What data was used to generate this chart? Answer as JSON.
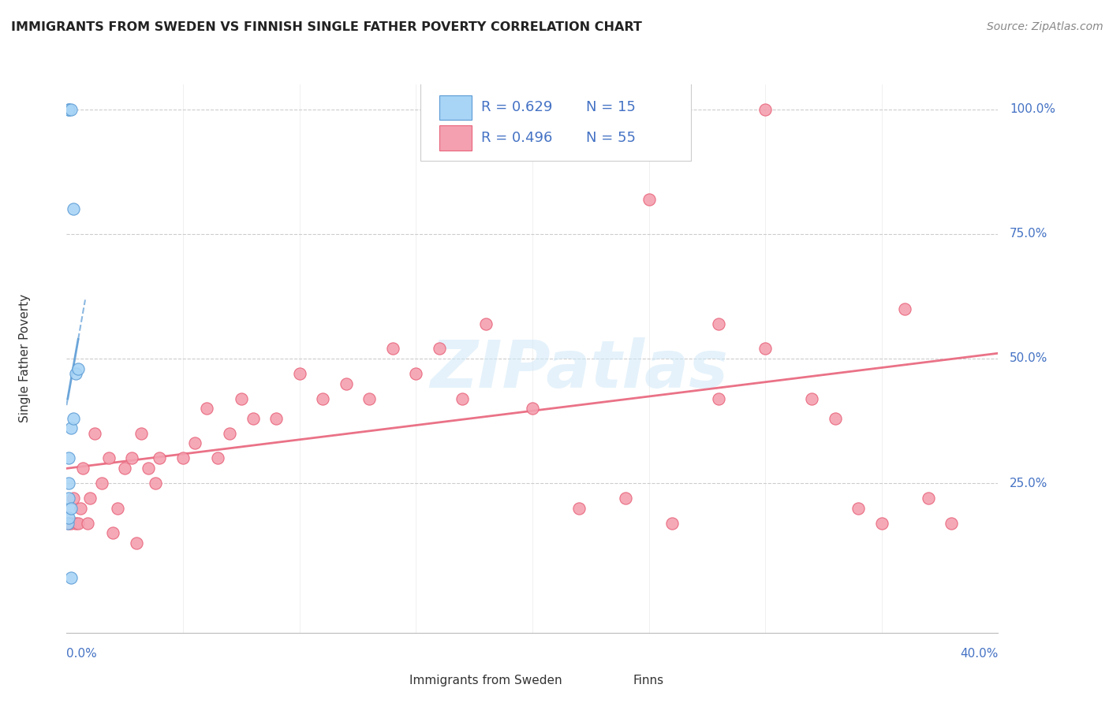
{
  "title": "IMMIGRANTS FROM SWEDEN VS FINNISH SINGLE FATHER POVERTY CORRELATION CHART",
  "source": "Source: ZipAtlas.com",
  "ylabel": "Single Father Poverty",
  "blue_color": "#5b9bd5",
  "blue_face": "#a8d4f5",
  "pink_color": "#e8637a",
  "pink_face": "#f4a0b0",
  "watermark": "ZIPatlas",
  "background_color": "#ffffff",
  "grid_color": "#cccccc",
  "blue_scatter_x": [
    0.0005,
    0.001,
    0.001,
    0.001,
    0.001,
    0.002,
    0.002,
    0.002,
    0.003,
    0.003,
    0.004,
    0.005,
    0.001,
    0.0008,
    0.002
  ],
  "blue_scatter_y": [
    0.17,
    1.0,
    1.0,
    0.22,
    0.18,
    1.0,
    0.36,
    0.2,
    0.38,
    0.8,
    0.47,
    0.48,
    0.3,
    0.25,
    0.06
  ],
  "pink_scatter_x": [
    0.001,
    0.002,
    0.003,
    0.004,
    0.005,
    0.006,
    0.007,
    0.009,
    0.01,
    0.012,
    0.015,
    0.018,
    0.02,
    0.022,
    0.025,
    0.028,
    0.03,
    0.032,
    0.035,
    0.038,
    0.04,
    0.05,
    0.055,
    0.06,
    0.065,
    0.07,
    0.075,
    0.08,
    0.09,
    0.1,
    0.11,
    0.12,
    0.13,
    0.14,
    0.15,
    0.16,
    0.17,
    0.18,
    0.2,
    0.22,
    0.24,
    0.26,
    0.28,
    0.3,
    0.32,
    0.34,
    0.36,
    0.38,
    0.37,
    0.21,
    0.3,
    0.35,
    0.25,
    0.28,
    0.33
  ],
  "pink_scatter_y": [
    0.17,
    0.17,
    0.22,
    0.17,
    0.17,
    0.2,
    0.28,
    0.17,
    0.22,
    0.35,
    0.25,
    0.3,
    0.15,
    0.2,
    0.28,
    0.3,
    0.13,
    0.35,
    0.28,
    0.25,
    0.3,
    0.3,
    0.33,
    0.4,
    0.3,
    0.35,
    0.42,
    0.38,
    0.38,
    0.47,
    0.42,
    0.45,
    0.42,
    0.52,
    0.47,
    0.52,
    0.42,
    0.57,
    0.4,
    0.2,
    0.22,
    0.17,
    0.57,
    0.52,
    0.42,
    0.2,
    0.6,
    0.17,
    0.22,
    1.0,
    1.0,
    0.17,
    0.82,
    0.42,
    0.38
  ],
  "xlim": [
    0.0,
    0.4
  ],
  "ylim": [
    0.0,
    1.0
  ],
  "yticks": [
    0.25,
    0.5,
    0.75,
    1.0
  ],
  "ytick_labels": [
    "25.0%",
    "50.0%",
    "75.0%",
    "100.0%"
  ]
}
